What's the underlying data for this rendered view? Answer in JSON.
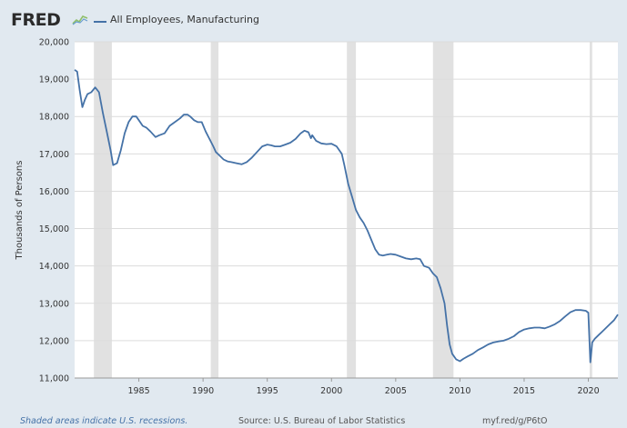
{
  "header": {
    "logo_text": "FRED",
    "logo_icon": "fred-graph-icon",
    "series_label": "All Employees, Manufacturing"
  },
  "footer": {
    "recessions_note": "Shaded areas indicate U.S. recessions.",
    "source": "Source: U.S. Bureau of Labor Statistics",
    "url": "myf.red/g/P6tO"
  },
  "colors": {
    "line": "#4572a7",
    "recession": "#e1e1e1",
    "plot_bg": "#ffffff",
    "grid": "#dcdcdc"
  },
  "chart_data": {
    "type": "line",
    "title": "",
    "ylabel": "Thousands of Persons",
    "xlabel": "",
    "ylim": [
      11000,
      20000
    ],
    "xlim": [
      1980.0,
      2022.3
    ],
    "yticks": [
      11000,
      12000,
      13000,
      14000,
      15000,
      16000,
      17000,
      18000,
      19000,
      20000
    ],
    "ytick_labels": [
      "11,000",
      "12,000",
      "13,000",
      "14,000",
      "15,000",
      "16,000",
      "17,000",
      "18,000",
      "19,000",
      "20,000"
    ],
    "xticks": [
      1985,
      1990,
      1995,
      2000,
      2005,
      2010,
      2015,
      2020
    ],
    "xtick_labels": [
      "1985",
      "1990",
      "1995",
      "2000",
      "2005",
      "2010",
      "2015",
      "2020"
    ],
    "grid": true,
    "recessions": [
      [
        1981.5,
        1982.9
      ],
      [
        1990.6,
        1991.2
      ],
      [
        2001.2,
        2001.9
      ],
      [
        2007.9,
        2009.5
      ],
      [
        2020.1,
        2020.3
      ]
    ],
    "series": [
      {
        "name": "All Employees, Manufacturing",
        "x": [
          1980.0,
          1980.2,
          1980.4,
          1980.6,
          1980.8,
          1981.0,
          1981.3,
          1981.6,
          1981.9,
          1982.2,
          1982.5,
          1982.8,
          1983.0,
          1983.3,
          1983.6,
          1983.9,
          1984.2,
          1984.5,
          1984.8,
          1985.0,
          1985.3,
          1985.6,
          1985.9,
          1986.3,
          1986.6,
          1987.0,
          1987.4,
          1987.8,
          1988.2,
          1988.5,
          1988.8,
          1989.0,
          1989.3,
          1989.6,
          1989.9,
          1990.2,
          1990.5,
          1990.8,
          1991.0,
          1991.3,
          1991.6,
          1991.9,
          1992.2,
          1992.6,
          1993.0,
          1993.4,
          1993.8,
          1994.2,
          1994.6,
          1995.0,
          1995.3,
          1995.6,
          1996.0,
          1996.4,
          1996.8,
          1997.2,
          1997.6,
          1997.9,
          1998.2,
          1998.4,
          1998.5,
          1998.8,
          1999.2,
          1999.6,
          2000.0,
          2000.4,
          2000.8,
          2001.0,
          2001.3,
          2001.6,
          2001.9,
          2002.2,
          2002.5,
          2002.8,
          2003.1,
          2003.4,
          2003.7,
          2004.0,
          2004.3,
          2004.6,
          2005.0,
          2005.4,
          2005.8,
          2006.2,
          2006.6,
          2006.9,
          2007.2,
          2007.6,
          2007.9,
          2008.2,
          2008.5,
          2008.8,
          2009.0,
          2009.2,
          2009.4,
          2009.7,
          2010.0,
          2010.3,
          2010.6,
          2011.0,
          2011.4,
          2011.8,
          2012.2,
          2012.6,
          2013.0,
          2013.4,
          2013.8,
          2014.2,
          2014.6,
          2015.0,
          2015.4,
          2015.8,
          2016.2,
          2016.6,
          2017.0,
          2017.4,
          2017.8,
          2018.2,
          2018.6,
          2019.0,
          2019.4,
          2019.8,
          2020.0,
          2020.15,
          2020.3,
          2020.5,
          2020.8,
          2021.1,
          2021.4,
          2021.7,
          2022.0,
          2022.3
        ],
        "y": [
          19250,
          19200,
          18700,
          18250,
          18450,
          18600,
          18650,
          18780,
          18650,
          18100,
          17600,
          17100,
          16700,
          16750,
          17100,
          17550,
          17850,
          18000,
          18000,
          17900,
          17750,
          17700,
          17600,
          17450,
          17500,
          17550,
          17750,
          17850,
          17950,
          18050,
          18050,
          18000,
          17900,
          17850,
          17850,
          17600,
          17400,
          17200,
          17050,
          16950,
          16850,
          16800,
          16780,
          16750,
          16720,
          16780,
          16900,
          17050,
          17200,
          17250,
          17230,
          17200,
          17200,
          17250,
          17300,
          17400,
          17550,
          17620,
          17580,
          17420,
          17500,
          17350,
          17280,
          17260,
          17270,
          17200,
          17000,
          16700,
          16200,
          15850,
          15500,
          15300,
          15150,
          14950,
          14700,
          14450,
          14300,
          14280,
          14300,
          14320,
          14300,
          14250,
          14200,
          14180,
          14200,
          14180,
          14000,
          13950,
          13800,
          13700,
          13400,
          13000,
          12400,
          11900,
          11650,
          11500,
          11450,
          11520,
          11580,
          11650,
          11750,
          11820,
          11900,
          11950,
          11980,
          12000,
          12050,
          12120,
          12230,
          12300,
          12330,
          12350,
          12350,
          12330,
          12380,
          12440,
          12530,
          12650,
          12760,
          12820,
          12820,
          12800,
          12750,
          11420,
          11950,
          12050,
          12150,
          12250,
          12350,
          12450,
          12550,
          12700
        ]
      }
    ]
  }
}
